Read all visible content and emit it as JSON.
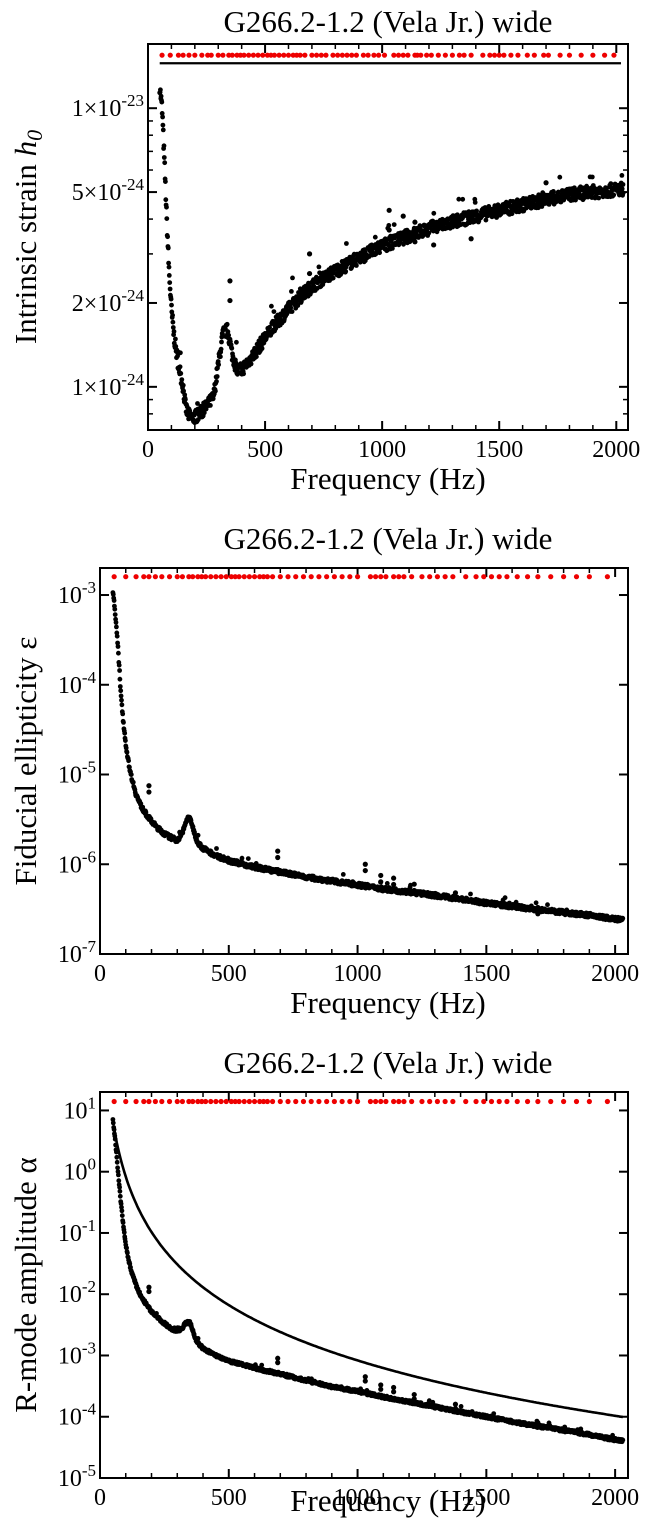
{
  "colors": {
    "data": "#000000",
    "marker": "#ee0000",
    "frame": "#000000",
    "background": "#ffffff"
  },
  "chart_data": [
    {
      "type": "scatter",
      "title": "G266.2-1.2 (Vela Jr.) wide",
      "xlabel": "Frequency (Hz)",
      "ylabel": {
        "text": "Intrinsic strain ",
        "italic": "h",
        "sub": "0"
      },
      "xlim": [
        0,
        2050
      ],
      "ylim": [
        7e-25,
        1.7e-23
      ],
      "yscale": "log",
      "xticks": [
        0,
        500,
        1000,
        1500,
        2000
      ],
      "xtick_labels": [
        "0",
        "500",
        "1000",
        "1500",
        "2000"
      ],
      "yticks": [
        {
          "value": 1e-24,
          "mant": "1×10",
          "exp": "-24"
        },
        {
          "value": 2e-24,
          "mant": "2×10",
          "exp": "-24"
        },
        {
          "value": 5e-24,
          "mant": "5×10",
          "exp": "-24"
        },
        {
          "value": 1e-23,
          "mant": "1×10",
          "exp": "-23"
        }
      ],
      "minor_yticks": [
        8e-25,
        9e-25,
        3e-24,
        4e-24,
        6e-24,
        7e-24,
        8e-24,
        9e-24
      ],
      "upper_limit": {
        "x": [
          50,
          60,
          70,
          80,
          90,
          100,
          110,
          120,
          130,
          140,
          150,
          160,
          170,
          180,
          190,
          200,
          220,
          240,
          260,
          280,
          300,
          320,
          340,
          350,
          360,
          380,
          400,
          450,
          500,
          550,
          600,
          650,
          700,
          750,
          800,
          900,
          1000,
          1100,
          1200,
          1300,
          1400,
          1500,
          1600,
          1700,
          1800,
          1900,
          2000,
          2030
        ],
        "y": [
          1.2e-23,
          1e-23,
          6.5e-24,
          4e-24,
          2.6e-24,
          1.9e-24,
          1.55e-24,
          1.35e-24,
          1.2e-24,
          1.1e-24,
          1e-24,
          8.5e-25,
          8e-25,
          7.8e-25,
          7.7e-25,
          7.8e-25,
          8e-25,
          8.3e-25,
          8.7e-25,
          9.2e-25,
          1.2e-24,
          1.55e-24,
          1.6e-24,
          1.45e-24,
          1.3e-24,
          1.15e-24,
          1.15e-24,
          1.3e-24,
          1.5e-24,
          1.7e-24,
          1.9e-24,
          2.1e-24,
          2.3e-24,
          2.45e-24,
          2.6e-24,
          2.9e-24,
          3.2e-24,
          3.45e-24,
          3.7e-24,
          3.9e-24,
          4.1e-24,
          4.3e-24,
          4.5e-24,
          4.7e-24,
          4.9e-24,
          5e-24,
          5.1e-24,
          5.15e-24
        ]
      },
      "spikes": [
        {
          "x": 350,
          "y": 2.4e-24
        },
        {
          "x": 690,
          "y": 3e-24
        },
        {
          "x": 1030,
          "y": 4.3e-24
        },
        {
          "x": 1090,
          "y": 4.1e-24
        },
        {
          "x": 1140,
          "y": 3.9e-24
        },
        {
          "x": 1220,
          "y": 3.8e-24
        },
        {
          "x": 1380,
          "y": 4e-24
        },
        {
          "x": 1700,
          "y": 5.4e-24
        }
      ],
      "smooth_curve": null,
      "horizontal_line": {
        "x": [
          50,
          2020
        ],
        "y": 1.45e-23
      },
      "markers_x": [
        60,
        95,
        130,
        150,
        175,
        200,
        230,
        255,
        270,
        300,
        320,
        345,
        360,
        380,
        395,
        410,
        430,
        450,
        470,
        490,
        510,
        525,
        540,
        560,
        580,
        600,
        620,
        635,
        650,
        670,
        700,
        720,
        740,
        760,
        790,
        810,
        830,
        850,
        870,
        890,
        920,
        940,
        965,
        985,
        1010,
        1050,
        1070,
        1090,
        1110,
        1140,
        1150,
        1165,
        1190,
        1210,
        1240,
        1270,
        1300,
        1330,
        1350,
        1380,
        1430,
        1460,
        1480,
        1500,
        1520,
        1550,
        1580,
        1620,
        1650,
        1690,
        1710,
        1760,
        1800,
        1850,
        1900,
        1950,
        1990
      ],
      "markers_y": 1.55e-23
    },
    {
      "type": "scatter",
      "title": "G266.2-1.2 (Vela Jr.) wide",
      "xlabel": "Frequency (Hz)",
      "ylabel": {
        "text": "Fiducial ellipticity ε",
        "italic": "",
        "sub": ""
      },
      "xlim": [
        0,
        2050
      ],
      "ylim": [
        1e-07,
        0.002
      ],
      "yscale": "log",
      "xticks": [
        0,
        500,
        1000,
        1500,
        2000
      ],
      "xtick_labels": [
        "0",
        "500",
        "1000",
        "1500",
        "2000"
      ],
      "yticks": [
        {
          "value": 1e-07,
          "mant": "10",
          "exp": "-7"
        },
        {
          "value": 1e-06,
          "mant": "10",
          "exp": "-6"
        },
        {
          "value": 1e-05,
          "mant": "10",
          "exp": "-5"
        },
        {
          "value": 0.0001,
          "mant": "10",
          "exp": "-4"
        },
        {
          "value": 0.001,
          "mant": "10",
          "exp": "-3"
        }
      ],
      "minor_yticks": [],
      "upper_limit": {
        "x": [
          50,
          60,
          70,
          80,
          90,
          100,
          110,
          120,
          140,
          160,
          180,
          200,
          220,
          240,
          260,
          280,
          300,
          320,
          330,
          340,
          350,
          360,
          370,
          380,
          400,
          450,
          500,
          600,
          700,
          800,
          900,
          1000,
          1100,
          1200,
          1300,
          1400,
          1500,
          1600,
          1700,
          1800,
          1900,
          2000,
          2030
        ],
        "y": [
          0.0011,
          0.0006,
          0.00025,
          9e-05,
          4e-05,
          2.2e-05,
          1.4e-05,
          1e-05,
          6e-06,
          4.4e-06,
          3.6e-06,
          3e-06,
          2.6e-06,
          2.3e-06,
          2.1e-06,
          1.95e-06,
          1.85e-06,
          2.2e-06,
          2.8e-06,
          3.2e-06,
          3.3e-06,
          2.6e-06,
          2e-06,
          1.75e-06,
          1.5e-06,
          1.25e-06,
          1.1e-06,
          9.3e-07,
          8.2e-07,
          7.2e-07,
          6.5e-07,
          5.9e-07,
          5.3e-07,
          4.9e-07,
          4.5e-07,
          4.1e-07,
          3.7e-07,
          3.4e-07,
          3.1e-07,
          2.9e-07,
          2.7e-07,
          2.45e-07,
          2.4e-07
        ]
      },
      "spikes": [
        {
          "x": 190,
          "y": 7.5e-06
        },
        {
          "x": 690,
          "y": 1.4e-06
        },
        {
          "x": 1030,
          "y": 1e-06
        },
        {
          "x": 1090,
          "y": 7.5e-07
        },
        {
          "x": 1140,
          "y": 7e-07
        },
        {
          "x": 1220,
          "y": 6e-07
        },
        {
          "x": 1380,
          "y": 4.8e-07
        },
        {
          "x": 1700,
          "y": 3.3e-07
        }
      ],
      "smooth_curve": {
        "coefficient": 1.05,
        "exponent": -2.3,
        "x_range": [
          55,
          2030
        ],
        "note_units": "frequency in kHz"
      },
      "horizontal_line": null,
      "markers_x": [
        55,
        100,
        140,
        170,
        190,
        215,
        240,
        270,
        300,
        320,
        345,
        360,
        380,
        395,
        410,
        430,
        450,
        470,
        490,
        510,
        525,
        540,
        560,
        580,
        600,
        620,
        635,
        650,
        670,
        700,
        730,
        760,
        790,
        820,
        850,
        880,
        910,
        940,
        970,
        1000,
        1050,
        1070,
        1090,
        1110,
        1140,
        1160,
        1180,
        1210,
        1250,
        1280,
        1310,
        1340,
        1370,
        1420,
        1460,
        1490,
        1520,
        1550,
        1580,
        1620,
        1660,
        1700,
        1750,
        1800,
        1850,
        1900,
        1970
      ],
      "markers_y": 0.0016
    },
    {
      "type": "scatter",
      "title": "G266.2-1.2 (Vela Jr.) wide",
      "xlabel": "Frequency (Hz)",
      "ylabel": {
        "text": "R-mode amplitude α",
        "italic": "",
        "sub": ""
      },
      "xlim": [
        0,
        2050
      ],
      "ylim": [
        1e-05,
        20
      ],
      "yscale": "log",
      "xticks": [
        0,
        500,
        1000,
        1500,
        2000
      ],
      "xtick_labels": [
        "0",
        "500",
        "1000",
        "1500",
        "2000"
      ],
      "yticks": [
        {
          "value": 1e-05,
          "mant": "10",
          "exp": "-5"
        },
        {
          "value": 0.0001,
          "mant": "10",
          "exp": "-4"
        },
        {
          "value": 0.001,
          "mant": "10",
          "exp": "-3"
        },
        {
          "value": 0.01,
          "mant": "10",
          "exp": "-2"
        },
        {
          "value": 0.1,
          "mant": "10",
          "exp": "-1"
        },
        {
          "value": 1,
          "mant": "10",
          "exp": "0"
        },
        {
          "value": 10,
          "mant": "10",
          "exp": "1"
        }
      ],
      "minor_yticks": [],
      "upper_limit": {
        "x": [
          50,
          60,
          70,
          80,
          90,
          100,
          110,
          120,
          140,
          160,
          180,
          200,
          220,
          240,
          260,
          280,
          300,
          320,
          330,
          340,
          350,
          360,
          370,
          380,
          400,
          450,
          500,
          600,
          700,
          800,
          900,
          1000,
          1100,
          1200,
          1300,
          1400,
          1500,
          1600,
          1700,
          1800,
          1900,
          2000,
          2030
        ],
        "y": [
          7,
          3,
          1.0,
          0.35,
          0.14,
          0.065,
          0.038,
          0.025,
          0.014,
          0.009,
          0.0068,
          0.0052,
          0.0043,
          0.0036,
          0.0031,
          0.0027,
          0.0025,
          0.0028,
          0.0033,
          0.0035,
          0.0034,
          0.0026,
          0.0019,
          0.0016,
          0.0013,
          0.001,
          0.00082,
          0.00062,
          0.0005,
          0.00039,
          0.00031,
          0.00026,
          0.00021,
          0.000175,
          0.000145,
          0.00012,
          0.0001,
          8.3e-05,
          7e-05,
          6e-05,
          5.1e-05,
          4.2e-05,
          4e-05
        ]
      },
      "spikes": [
        {
          "x": 190,
          "y": 0.013
        },
        {
          "x": 690,
          "y": 0.0009
        },
        {
          "x": 1030,
          "y": 0.00045
        },
        {
          "x": 1090,
          "y": 0.00033
        },
        {
          "x": 1140,
          "y": 0.0003
        },
        {
          "x": 1220,
          "y": 0.00023
        },
        {
          "x": 1380,
          "y": 0.00016
        },
        {
          "x": 1700,
          "y": 8e-05
        }
      ],
      "smooth_curve": {
        "coefficient": 0.00083,
        "exponent": -3.0,
        "x_range": [
          55,
          2030
        ],
        "note_units": "frequency in kHz"
      },
      "horizontal_line": null,
      "markers_x": [
        55,
        100,
        140,
        170,
        190,
        215,
        240,
        270,
        300,
        320,
        345,
        360,
        380,
        395,
        410,
        430,
        450,
        470,
        490,
        510,
        525,
        540,
        560,
        580,
        600,
        620,
        635,
        650,
        670,
        700,
        730,
        760,
        790,
        820,
        850,
        880,
        910,
        940,
        970,
        1000,
        1050,
        1070,
        1090,
        1110,
        1140,
        1160,
        1180,
        1210,
        1250,
        1280,
        1310,
        1340,
        1370,
        1420,
        1460,
        1490,
        1520,
        1550,
        1580,
        1620,
        1660,
        1700,
        1750,
        1800,
        1850,
        1900,
        1970
      ],
      "markers_y": 14
    }
  ]
}
